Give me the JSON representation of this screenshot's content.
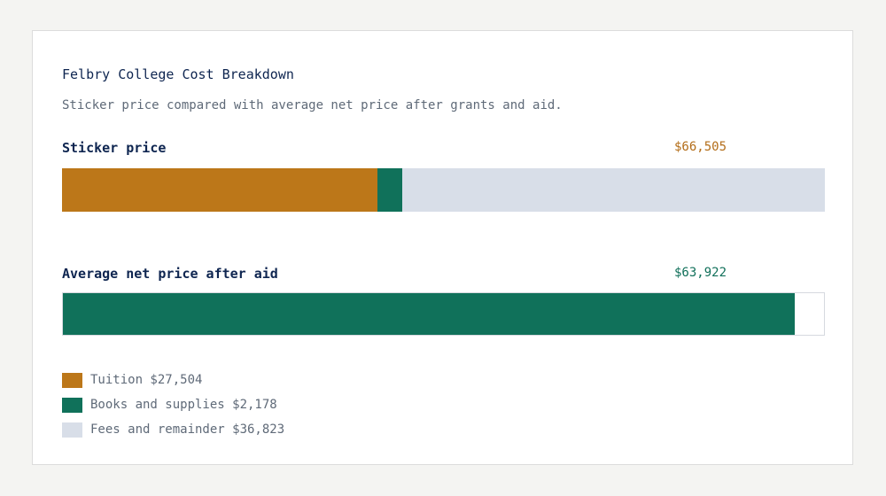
{
  "chart_data": {
    "type": "bar",
    "orientation": "horizontal",
    "stacked": true,
    "title": "Felbry College Cost Breakdown",
    "subtitle": "Sticker price compared with average net price after grants and aid.",
    "rows": [
      {
        "label": "Sticker price",
        "value_label": "$66,505",
        "total": 66505,
        "value_color": "#b36d18",
        "segments": [
          {
            "key": "tuition",
            "value": 27504
          },
          {
            "key": "books",
            "value": 2178
          },
          {
            "key": "fees",
            "value": 36823
          }
        ]
      },
      {
        "label": "Average net price after aid",
        "value_label": "$63,922",
        "total": 63922,
        "value_color": "#11705a",
        "segments": [
          {
            "key": "net",
            "value": 63922
          }
        ]
      }
    ],
    "scale_max": 66505,
    "legend": [
      {
        "key": "tuition",
        "label": "Tuition $27,504",
        "color": "#bc7719"
      },
      {
        "key": "books",
        "label": "Books and supplies $2,178",
        "color": "#10715a"
      },
      {
        "key": "fees",
        "label": "Fees and remainder $36,823",
        "color": "#d8dee8"
      }
    ],
    "net_color": "#10715a",
    "grid": false,
    "legend_position": "bottom-left"
  }
}
